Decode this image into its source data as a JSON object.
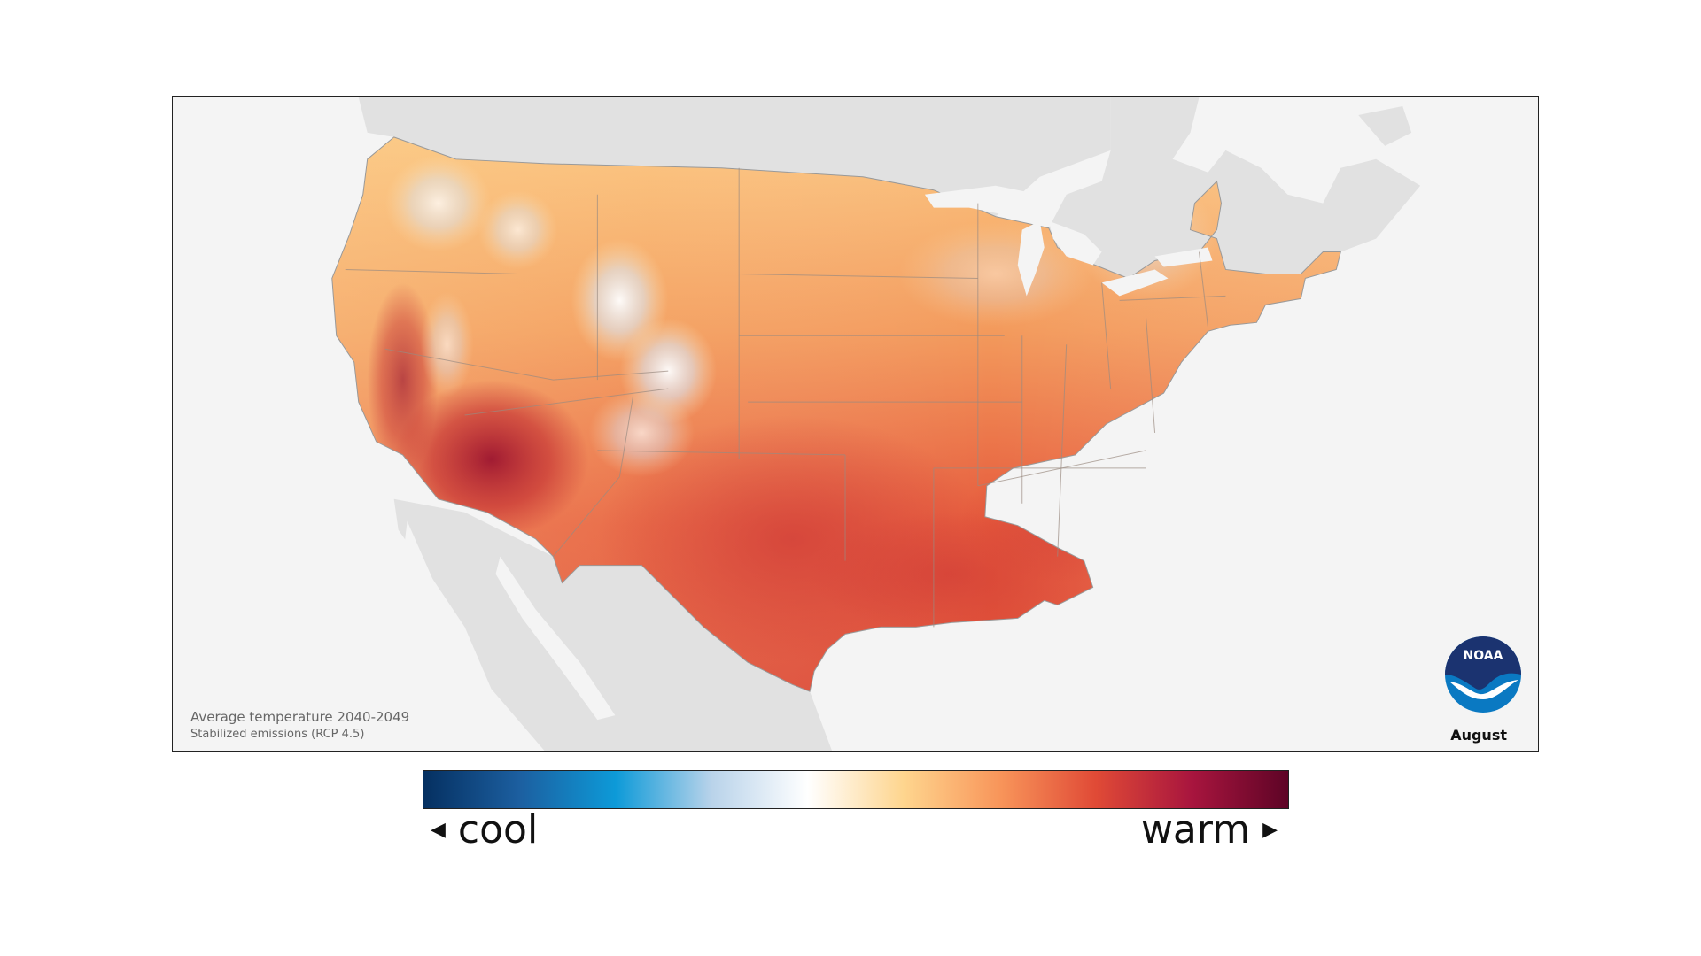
{
  "map": {
    "caption_title": "Average temperature 2040-2049",
    "caption_subtitle": "Stabilized emissions (RCP 4.5)",
    "month": "August",
    "logo_text": "NOAA",
    "colors": {
      "ocean": "#f4f4f4",
      "neighbor_land": "#e1e1e1",
      "state_border": "#8f8f8f",
      "hot": "#b2182b",
      "warm": "#e4533a",
      "mild": "#f6a15a",
      "cool_high": "#fde6b8"
    }
  },
  "legend": {
    "cool_label": "cool",
    "warm_label": "warm",
    "left_arrow_icon": "◀",
    "right_arrow_icon": "▶",
    "colors": [
      "#053061",
      "#1c5fa0",
      "#0d9ad8",
      "#b9d3ea",
      "#ffffff",
      "#fed58e",
      "#f8955a",
      "#e04a36",
      "#a8153e",
      "#5e0426"
    ]
  }
}
